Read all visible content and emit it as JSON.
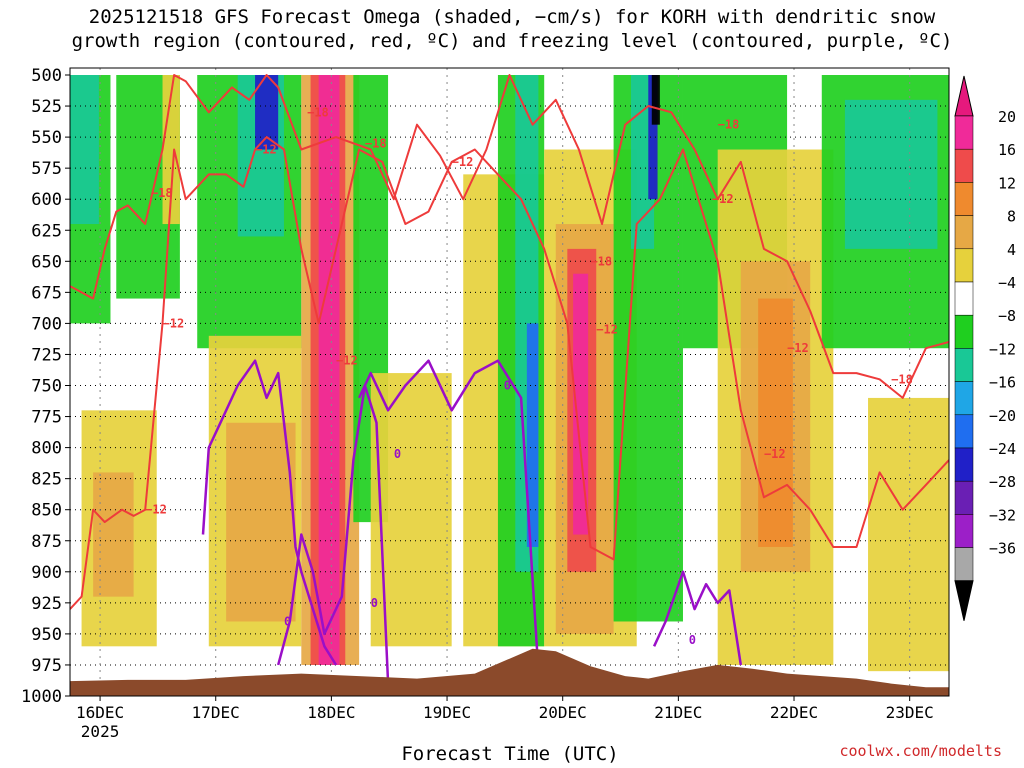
{
  "title_line1": "2025121518 GFS Forecast Omega (shaded, −cm/s) for KORH with dendritic snow",
  "title_line2": "growth region (contoured, red, ºC) and freezing level (contoured, purple, ºC)",
  "credit": "coolwx.com/modelts",
  "chart_data": {
    "type": "heatmap",
    "xlabel": "Forecast Time (UTC)",
    "ylabel": "",
    "x_ticks": [
      "16DEC",
      "17DEC",
      "18DEC",
      "19DEC",
      "20DEC",
      "21DEC",
      "22DEC",
      "23DEC"
    ],
    "x_tick_year": "2025",
    "x_tick_pos": [
      0.26,
      1.26,
      2.26,
      3.26,
      4.26,
      5.26,
      6.26,
      7.26
    ],
    "xlim": [
      0,
      7.6
    ],
    "y_ticks": [
      500,
      525,
      550,
      575,
      600,
      625,
      650,
      675,
      700,
      725,
      750,
      775,
      800,
      825,
      850,
      875,
      900,
      925,
      950,
      975,
      1000
    ],
    "ylim": [
      1000,
      500
    ],
    "grid": true,
    "colorbar": {
      "labels": [
        "20",
        "16",
        "12",
        "8",
        "4",
        "−4",
        "−8",
        "−12",
        "−16",
        "−20",
        "−24",
        "−28",
        "−32",
        "−36"
      ],
      "colors": [
        "#f02a99",
        "#ef4b4b",
        "#ef8a2e",
        "#e6a845",
        "#e6d13c",
        "#ffffff",
        "#1fcf1f",
        "#19c896",
        "#1fa6e6",
        "#1f6ef0",
        "#2020c8",
        "#6a1fb4",
        "#9c1fc8",
        "#a8a8a8"
      ],
      "top_color": "#e6197d",
      "bottom_color": "#000000"
    },
    "omega_bands": [
      {
        "x": [
          0.0,
          0.35
        ],
        "p": [
          500,
          700
        ],
        "value": -8
      },
      {
        "x": [
          0.0,
          0.25
        ],
        "p": [
          500,
          620
        ],
        "value": -12
      },
      {
        "x": [
          0.1,
          0.75
        ],
        "p": [
          770,
          960
        ],
        "value": 4
      },
      {
        "x": [
          0.2,
          0.55
        ],
        "p": [
          820,
          920
        ],
        "value": 8
      },
      {
        "x": [
          0.4,
          0.95
        ],
        "p": [
          500,
          680
        ],
        "value": -8
      },
      {
        "x": [
          0.8,
          0.95
        ],
        "p": [
          500,
          620
        ],
        "value": 4
      },
      {
        "x": [
          1.1,
          2.0
        ],
        "p": [
          500,
          720
        ],
        "value": -8
      },
      {
        "x": [
          1.45,
          1.85
        ],
        "p": [
          500,
          630
        ],
        "value": -12
      },
      {
        "x": [
          1.6,
          1.8
        ],
        "p": [
          500,
          560
        ],
        "value": -20
      },
      {
        "x": [
          1.2,
          2.0
        ],
        "p": [
          710,
          960
        ],
        "value": 4
      },
      {
        "x": [
          1.35,
          1.95
        ],
        "p": [
          780,
          940
        ],
        "value": 8
      },
      {
        "x": [
          2.0,
          2.5
        ],
        "p": [
          500,
          975
        ],
        "value": 8
      },
      {
        "x": [
          2.08,
          2.38
        ],
        "p": [
          500,
          975
        ],
        "value": 16
      },
      {
        "x": [
          2.15,
          2.33
        ],
        "p": [
          500,
          975
        ],
        "value": 20
      },
      {
        "x": [
          2.45,
          2.75
        ],
        "p": [
          500,
          860
        ],
        "value": -8
      },
      {
        "x": [
          2.6,
          3.3
        ],
        "p": [
          740,
          960
        ],
        "value": 4
      },
      {
        "x": [
          3.4,
          4.1
        ],
        "p": [
          580,
          960
        ],
        "value": 4
      },
      {
        "x": [
          3.7,
          4.1
        ],
        "p": [
          500,
          960
        ],
        "value": -8
      },
      {
        "x": [
          3.85,
          4.05
        ],
        "p": [
          500,
          900
        ],
        "value": -12
      },
      {
        "x": [
          3.95,
          4.05
        ],
        "p": [
          700,
          880
        ],
        "value": -16
      },
      {
        "x": [
          4.1,
          4.9
        ],
        "p": [
          560,
          960
        ],
        "value": 4
      },
      {
        "x": [
          4.2,
          4.7
        ],
        "p": [
          620,
          950
        ],
        "value": 8
      },
      {
        "x": [
          4.3,
          4.55
        ],
        "p": [
          640,
          900
        ],
        "value": 16
      },
      {
        "x": [
          4.35,
          4.48
        ],
        "p": [
          660,
          870
        ],
        "value": 20
      },
      {
        "x": [
          4.7,
          5.3
        ],
        "p": [
          500,
          940
        ],
        "value": -8
      },
      {
        "x": [
          4.85,
          5.05
        ],
        "p": [
          500,
          640
        ],
        "value": -12
      },
      {
        "x": [
          5.0,
          5.08
        ],
        "p": [
          500,
          600
        ],
        "value": -20
      },
      {
        "x": [
          5.03,
          5.1
        ],
        "p": [
          500,
          540
        ],
        "value": -36
      },
      {
        "x": [
          5.3,
          6.2
        ],
        "p": [
          500,
          720
        ],
        "value": -8
      },
      {
        "x": [
          5.6,
          6.6
        ],
        "p": [
          560,
          975
        ],
        "value": 4
      },
      {
        "x": [
          5.8,
          6.4
        ],
        "p": [
          650,
          900
        ],
        "value": 8
      },
      {
        "x": [
          5.95,
          6.25
        ],
        "p": [
          680,
          880
        ],
        "value": 12
      },
      {
        "x": [
          6.5,
          7.6
        ],
        "p": [
          500,
          720
        ],
        "value": -8
      },
      {
        "x": [
          6.7,
          7.5
        ],
        "p": [
          520,
          640
        ],
        "value": -12
      },
      {
        "x": [
          6.9,
          7.6
        ],
        "p": [
          760,
          980
        ],
        "value": 4
      }
    ],
    "contour_labels": {
      "dgz": [
        "−18",
        "−12",
        "−12",
        "−18",
        "−12",
        "−18",
        "−12",
        "−12",
        "−18",
        "−12",
        "−18",
        "−12",
        "−12",
        "−12",
        "−18"
      ],
      "freezing": [
        "0",
        "0",
        "0",
        "0",
        "0"
      ]
    },
    "dgz_lines": [
      {
        "x": [
          0.0,
          0.1,
          0.2,
          0.3,
          0.4,
          0.5,
          0.55,
          0.65,
          0.8,
          0.9,
          1.0,
          1.2,
          1.4,
          1.55,
          1.7,
          1.8,
          2.0,
          2.3,
          2.6,
          2.8,
          3.0,
          3.2,
          3.4,
          3.6,
          3.8,
          4.0,
          4.2,
          4.4,
          4.6,
          4.8,
          5.0,
          5.2,
          5.4,
          5.6,
          5.8,
          6.0,
          6.2,
          6.4,
          6.6,
          6.8,
          7.0,
          7.2,
          7.4,
          7.6
        ],
        "p": [
          670,
          675,
          680,
          640,
          610,
          605,
          610,
          620,
          560,
          500,
          505,
          530,
          510,
          520,
          500,
          510,
          560,
          550,
          560,
          600,
          540,
          565,
          600,
          560,
          500,
          540,
          520,
          560,
          620,
          540,
          525,
          530,
          560,
          600,
          570,
          640,
          650,
          690,
          740,
          740,
          745,
          760,
          720,
          715
        ]
      },
      {
        "x": [
          0.0,
          0.1,
          0.2,
          0.3,
          0.45,
          0.55,
          0.65,
          0.8,
          0.9,
          1.0,
          1.2,
          1.35,
          1.5,
          1.6,
          1.7,
          1.85,
          2.0,
          2.15,
          2.3,
          2.5,
          2.7,
          2.9,
          3.1,
          3.3,
          3.5,
          3.7,
          3.9,
          4.1,
          4.3,
          4.5,
          4.7,
          4.9,
          5.1,
          5.3,
          5.5,
          5.6,
          5.8,
          6.0,
          6.2,
          6.4,
          6.6,
          6.8,
          7.0,
          7.2,
          7.4,
          7.6
        ],
        "p": [
          930,
          920,
          850,
          860,
          850,
          855,
          850,
          700,
          560,
          600,
          580,
          580,
          590,
          560,
          550,
          560,
          640,
          700,
          640,
          560,
          570,
          620,
          610,
          570,
          560,
          580,
          600,
          640,
          700,
          880,
          890,
          620,
          600,
          560,
          620,
          650,
          770,
          840,
          830,
          850,
          880,
          880,
          820,
          850,
          830,
          810
        ]
      }
    ],
    "freezing_lines": [
      {
        "x": [
          1.15,
          1.2,
          1.3,
          1.45,
          1.6,
          1.7,
          1.8,
          1.9,
          1.95,
          2.0,
          2.1,
          2.2,
          2.3
        ],
        "p": [
          870,
          800,
          780,
          750,
          730,
          760,
          740,
          820,
          880,
          900,
          930,
          960,
          975
        ]
      },
      {
        "x": [
          1.8,
          1.9,
          2.0,
          2.1,
          2.2,
          2.35,
          2.45,
          2.55,
          2.65,
          2.75
        ],
        "p": [
          975,
          940,
          870,
          900,
          950,
          920,
          810,
          750,
          780,
          990
        ]
      },
      {
        "x": [
          2.5,
          2.6,
          2.75,
          2.9,
          3.1,
          3.3,
          3.5,
          3.7,
          3.9,
          4.05
        ],
        "p": [
          760,
          740,
          770,
          750,
          730,
          770,
          740,
          730,
          760,
          980
        ]
      },
      {
        "x": [
          5.05,
          5.15,
          5.3,
          5.4,
          5.5,
          5.6,
          5.7,
          5.8
        ],
        "p": [
          960,
          940,
          900,
          930,
          910,
          925,
          915,
          975
        ]
      }
    ],
    "terrain": {
      "color": "#8b4a2b",
      "x": [
        0.0,
        0.5,
        1.0,
        1.5,
        2.0,
        2.5,
        3.0,
        3.5,
        3.8,
        4.0,
        4.2,
        4.5,
        4.8,
        5.0,
        5.3,
        5.6,
        5.9,
        6.2,
        6.5,
        6.8,
        7.1,
        7.4,
        7.6
      ],
      "p": [
        988,
        987,
        987,
        984,
        982,
        984,
        986,
        982,
        970,
        962,
        964,
        976,
        984,
        986,
        980,
        975,
        978,
        982,
        984,
        986,
        990,
        993,
        993
      ]
    }
  }
}
